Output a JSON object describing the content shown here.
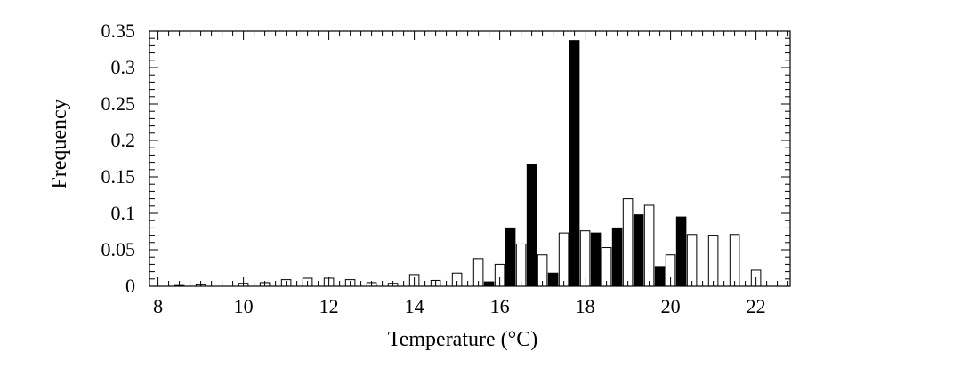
{
  "chart_data": {
    "type": "bar",
    "title": "",
    "xlabel": "Temperature  (°C)",
    "ylabel": "Frequency",
    "xlim": [
      7.8,
      22.8
    ],
    "ylim": [
      0,
      0.35
    ],
    "xticks": [
      8,
      10,
      12,
      14,
      16,
      18,
      20,
      22
    ],
    "yticks": [
      0,
      0.05,
      0.1,
      0.15,
      0.2,
      0.25,
      0.3,
      0.35
    ],
    "ytick_labels": [
      "0",
      "0.05",
      "0.1",
      "0.15",
      "0.2",
      "0.25",
      "0.3",
      "0.35"
    ],
    "grid": false,
    "legend": null,
    "bar_width": 0.22,
    "series": [
      {
        "fill": "#ffffff",
        "stroke": "#000000",
        "points": [
          {
            "x": 8.5,
            "y": 0.001
          },
          {
            "x": 9.0,
            "y": 0.002
          },
          {
            "x": 10.0,
            "y": 0.004
          },
          {
            "x": 10.5,
            "y": 0.005
          },
          {
            "x": 11.0,
            "y": 0.009
          },
          {
            "x": 11.5,
            "y": 0.011
          },
          {
            "x": 12.0,
            "y": 0.011
          },
          {
            "x": 12.5,
            "y": 0.009
          },
          {
            "x": 13.0,
            "y": 0.005
          },
          {
            "x": 13.5,
            "y": 0.004
          },
          {
            "x": 14.0,
            "y": 0.016
          },
          {
            "x": 14.5,
            "y": 0.008
          },
          {
            "x": 15.0,
            "y": 0.018
          },
          {
            "x": 15.5,
            "y": 0.038
          },
          {
            "x": 16.0,
            "y": 0.03
          },
          {
            "x": 16.5,
            "y": 0.058
          },
          {
            "x": 17.0,
            "y": 0.043
          },
          {
            "x": 17.5,
            "y": 0.073
          },
          {
            "x": 18.0,
            "y": 0.076
          },
          {
            "x": 18.5,
            "y": 0.053
          },
          {
            "x": 19.0,
            "y": 0.12
          },
          {
            "x": 19.5,
            "y": 0.111
          },
          {
            "x": 20.0,
            "y": 0.043
          },
          {
            "x": 20.5,
            "y": 0.071
          },
          {
            "x": 21.0,
            "y": 0.07
          },
          {
            "x": 21.5,
            "y": 0.071
          },
          {
            "x": 22.0,
            "y": 0.022
          }
        ]
      },
      {
        "fill": "#000000",
        "stroke": "#000000",
        "points": [
          {
            "x": 15.75,
            "y": 0.006
          },
          {
            "x": 16.25,
            "y": 0.08
          },
          {
            "x": 16.75,
            "y": 0.167
          },
          {
            "x": 17.25,
            "y": 0.018
          },
          {
            "x": 17.75,
            "y": 0.337
          },
          {
            "x": 18.25,
            "y": 0.073
          },
          {
            "x": 18.75,
            "y": 0.08
          },
          {
            "x": 19.25,
            "y": 0.098
          },
          {
            "x": 19.75,
            "y": 0.027
          },
          {
            "x": 20.25,
            "y": 0.095
          }
        ]
      }
    ]
  }
}
